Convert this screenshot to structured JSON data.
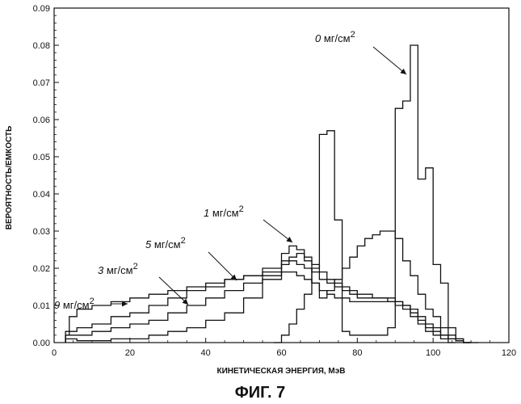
{
  "chart_data": {
    "type": "line",
    "title": "",
    "xlabel": "КИНЕТИЧЕСКАЯ ЭНЕРГИЯ, МэВ",
    "ylabel": "ВЕРОЯТНОСТЬ/ЕМКОСТЬ",
    "caption": "ФИГ. 7",
    "xlim": [
      0,
      120
    ],
    "ylim": [
      0,
      0.09
    ],
    "xticks": [
      0,
      20,
      40,
      60,
      80,
      100,
      120
    ],
    "yticks": [
      0.0,
      0.01,
      0.02,
      0.03,
      0.04,
      0.05,
      0.06,
      0.07,
      0.08,
      0.09
    ],
    "ytick_labels": [
      "0.00",
      "0.01",
      "0.02",
      "0.03",
      "0.04",
      "0.05",
      "0.06",
      "0.07",
      "0.08",
      "0.09"
    ],
    "grid": false,
    "step": true,
    "series": [
      {
        "name": "0 мг/см",
        "label_num": "0",
        "label_unit": " мг/см",
        "label_sup": "2",
        "x": [
          58,
          60,
          62,
          64,
          66,
          68,
          70,
          72,
          74,
          76,
          78,
          80,
          82,
          84,
          86,
          88,
          90,
          92,
          94,
          96,
          98,
          100,
          102,
          104,
          106,
          108,
          110
        ],
        "y": [
          0.0,
          0.002,
          0.005,
          0.009,
          0.013,
          0.02,
          0.056,
          0.057,
          0.033,
          0.003,
          0.002,
          0.002,
          0.002,
          0.002,
          0.002,
          0.004,
          0.063,
          0.065,
          0.08,
          0.044,
          0.047,
          0.021,
          0.016,
          0.004,
          0.001,
          0.0,
          0.0
        ],
        "label_pos": "top-right"
      },
      {
        "name": "1 мг/см",
        "label_num": "1",
        "label_unit": " мг/см",
        "label_sup": "2",
        "x": [
          3,
          6,
          10,
          15,
          20,
          25,
          30,
          35,
          40,
          45,
          50,
          55,
          60,
          62,
          64,
          66,
          68,
          70,
          72,
          74,
          76,
          78,
          80,
          82,
          84,
          86,
          88,
          90,
          92,
          94,
          96,
          98,
          100,
          102,
          104,
          106,
          108
        ],
        "y": [
          0.001,
          0.0005,
          0.0005,
          0.001,
          0.001,
          0.002,
          0.003,
          0.004,
          0.006,
          0.008,
          0.012,
          0.017,
          0.024,
          0.026,
          0.025,
          0.022,
          0.016,
          0.012,
          0.014,
          0.017,
          0.02,
          0.023,
          0.026,
          0.028,
          0.029,
          0.03,
          0.03,
          0.028,
          0.022,
          0.018,
          0.013,
          0.009,
          0.007,
          0.004,
          0.002,
          0.001,
          0.0
        ],
        "label_pos": "middle"
      },
      {
        "name": "3 мг/см",
        "label_num": "3",
        "label_unit": " мг/см",
        "label_sup": "2",
        "x": [
          3,
          6,
          10,
          15,
          20,
          25,
          30,
          35,
          40,
          45,
          50,
          55,
          60,
          62,
          64,
          66,
          68,
          70,
          72,
          74,
          76,
          78,
          80,
          82,
          84,
          86,
          88,
          90,
          92,
          94,
          96,
          98,
          100,
          102,
          104,
          106,
          108
        ],
        "y": [
          0.002,
          0.002,
          0.003,
          0.004,
          0.005,
          0.006,
          0.008,
          0.01,
          0.012,
          0.014,
          0.016,
          0.019,
          0.022,
          0.023,
          0.024,
          0.023,
          0.021,
          0.019,
          0.017,
          0.016,
          0.015,
          0.014,
          0.013,
          0.013,
          0.012,
          0.012,
          0.012,
          0.011,
          0.01,
          0.009,
          0.007,
          0.005,
          0.004,
          0.002,
          0.001,
          0.0005,
          0.0
        ],
        "label_pos": "left"
      },
      {
        "name": "5 мг/см",
        "label_num": "5",
        "label_unit": " мг/см",
        "label_sup": "2",
        "x": [
          3,
          6,
          10,
          15,
          20,
          25,
          30,
          35,
          40,
          45,
          50,
          55,
          60,
          62,
          64,
          66,
          68,
          70,
          72,
          74,
          76,
          78,
          80,
          82,
          84,
          86,
          88,
          90,
          92,
          94,
          96,
          98,
          100,
          102,
          104,
          106,
          108
        ],
        "y": [
          0.003,
          0.004,
          0.005,
          0.007,
          0.008,
          0.01,
          0.012,
          0.014,
          0.015,
          0.017,
          0.018,
          0.02,
          0.021,
          0.022,
          0.021,
          0.02,
          0.019,
          0.017,
          0.016,
          0.015,
          0.014,
          0.013,
          0.012,
          0.012,
          0.012,
          0.012,
          0.011,
          0.011,
          0.01,
          0.008,
          0.006,
          0.004,
          0.003,
          0.002,
          0.001,
          0.0005,
          0.0
        ],
        "label_pos": "middle-left"
      },
      {
        "name": "9 мг/см",
        "label_num": "9",
        "label_unit": " мг/см",
        "label_sup": "2",
        "x": [
          3,
          4,
          6,
          10,
          15,
          20,
          25,
          30,
          35,
          40,
          45,
          50,
          55,
          60,
          62,
          64,
          66,
          68,
          70,
          72,
          74,
          76,
          78,
          80,
          82,
          84,
          86,
          88,
          90,
          92,
          94,
          96,
          98,
          100,
          102,
          104
        ],
        "y": [
          0.002,
          0.007,
          0.009,
          0.01,
          0.011,
          0.012,
          0.013,
          0.014,
          0.015,
          0.016,
          0.017,
          0.018,
          0.018,
          0.019,
          0.019,
          0.018,
          0.017,
          0.016,
          0.014,
          0.013,
          0.012,
          0.012,
          0.011,
          0.011,
          0.011,
          0.011,
          0.011,
          0.011,
          0.01,
          0.009,
          0.007,
          0.005,
          0.003,
          0.002,
          0.001,
          0.0
        ],
        "label_pos": "far-left"
      }
    ]
  }
}
